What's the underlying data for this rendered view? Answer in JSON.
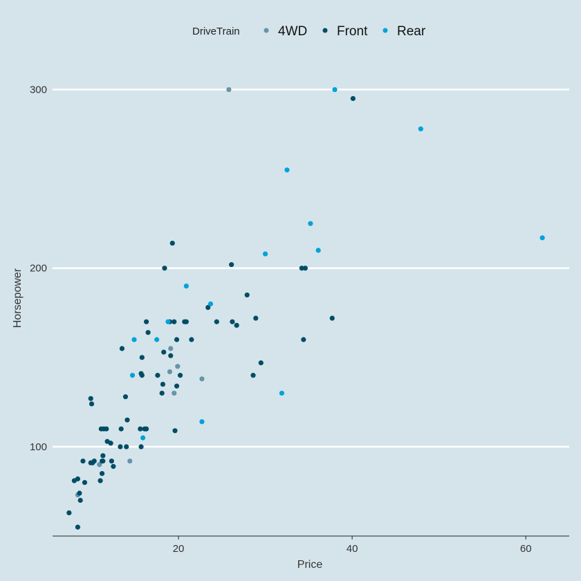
{
  "chart_data": {
    "type": "scatter",
    "title": "",
    "xlabel": "Price",
    "ylabel": "Horsepower",
    "xlim": [
      5.5,
      65
    ],
    "ylim": [
      50,
      325
    ],
    "xticks": [
      20,
      40,
      60
    ],
    "yticks": [
      100,
      200,
      300
    ],
    "grid": "horizontal-major",
    "legend": {
      "title": "DriveTrain",
      "placement": "top-center",
      "entries": [
        "4WD",
        "Front",
        "Rear"
      ]
    },
    "colors": {
      "background": "#d5e4eb",
      "gridline": "#ffffff",
      "axis_line": "#222222",
      "4WD": "#6794a7",
      "Front": "#014d64",
      "Rear": "#01a2d9"
    },
    "series": [
      {
        "name": "4WD",
        "x": [
          25.8,
          8.4,
          10.9,
          14.4,
          19.0,
          19.1,
          19.5,
          19.9,
          22.7
        ],
        "y": [
          300,
          73,
          90,
          92,
          142,
          155,
          130,
          145,
          138
        ]
      },
      {
        "name": "Front",
        "x": [
          40.1,
          34.2,
          34.6,
          26.1,
          19.3,
          18.4,
          27.9,
          23.4,
          24.4,
          26.2,
          26.7,
          28.9,
          29.5,
          28.6,
          34.4,
          37.7,
          13.5,
          15.8,
          15.7,
          16.3,
          16.5,
          17.6,
          18.3,
          18.2,
          18.1,
          19.5,
          19.1,
          19.0,
          20.7,
          20.9,
          19.8,
          20.2,
          21.5,
          19.8,
          19.6,
          13.9,
          13.4,
          14.0,
          14.1,
          15.6,
          15.8,
          16.1,
          16.3,
          15.7,
          9.9,
          10.0,
          11.1,
          11.4,
          11.8,
          12.2,
          11.7,
          11.3,
          11.3,
          12.3,
          12.5,
          13.3,
          9.0,
          10.1,
          8.4,
          8.0,
          9.2,
          9.9,
          10.3,
          11.0,
          11.2,
          11.2,
          8.7,
          8.6,
          7.4,
          8.4
        ],
        "y": [
          295,
          200,
          200,
          202,
          214,
          200,
          185,
          178,
          170,
          170,
          168,
          172,
          147,
          140,
          160,
          172,
          155,
          150,
          141,
          170,
          164,
          140,
          153,
          135,
          130,
          170,
          151,
          170,
          170,
          170,
          160,
          140,
          160,
          134,
          109,
          128,
          110,
          100,
          115,
          110,
          140,
          110,
          110,
          100,
          127,
          124,
          110,
          110,
          103,
          102,
          110,
          92,
          95,
          92,
          89,
          100,
          92,
          91,
          82,
          81,
          80,
          91,
          92,
          81,
          85,
          92,
          70,
          74,
          63,
          55
        ]
      },
      {
        "name": "Rear",
        "x": [
          38.0,
          47.9,
          61.9,
          32.5,
          35.2,
          36.1,
          30.0,
          20.9,
          23.7,
          17.5,
          18.8,
          14.9,
          14.7,
          15.9,
          31.9,
          22.7
        ],
        "y": [
          300,
          278,
          217,
          255,
          225,
          210,
          208,
          190,
          180,
          160,
          170,
          160,
          140,
          105,
          130,
          114
        ]
      }
    ]
  }
}
